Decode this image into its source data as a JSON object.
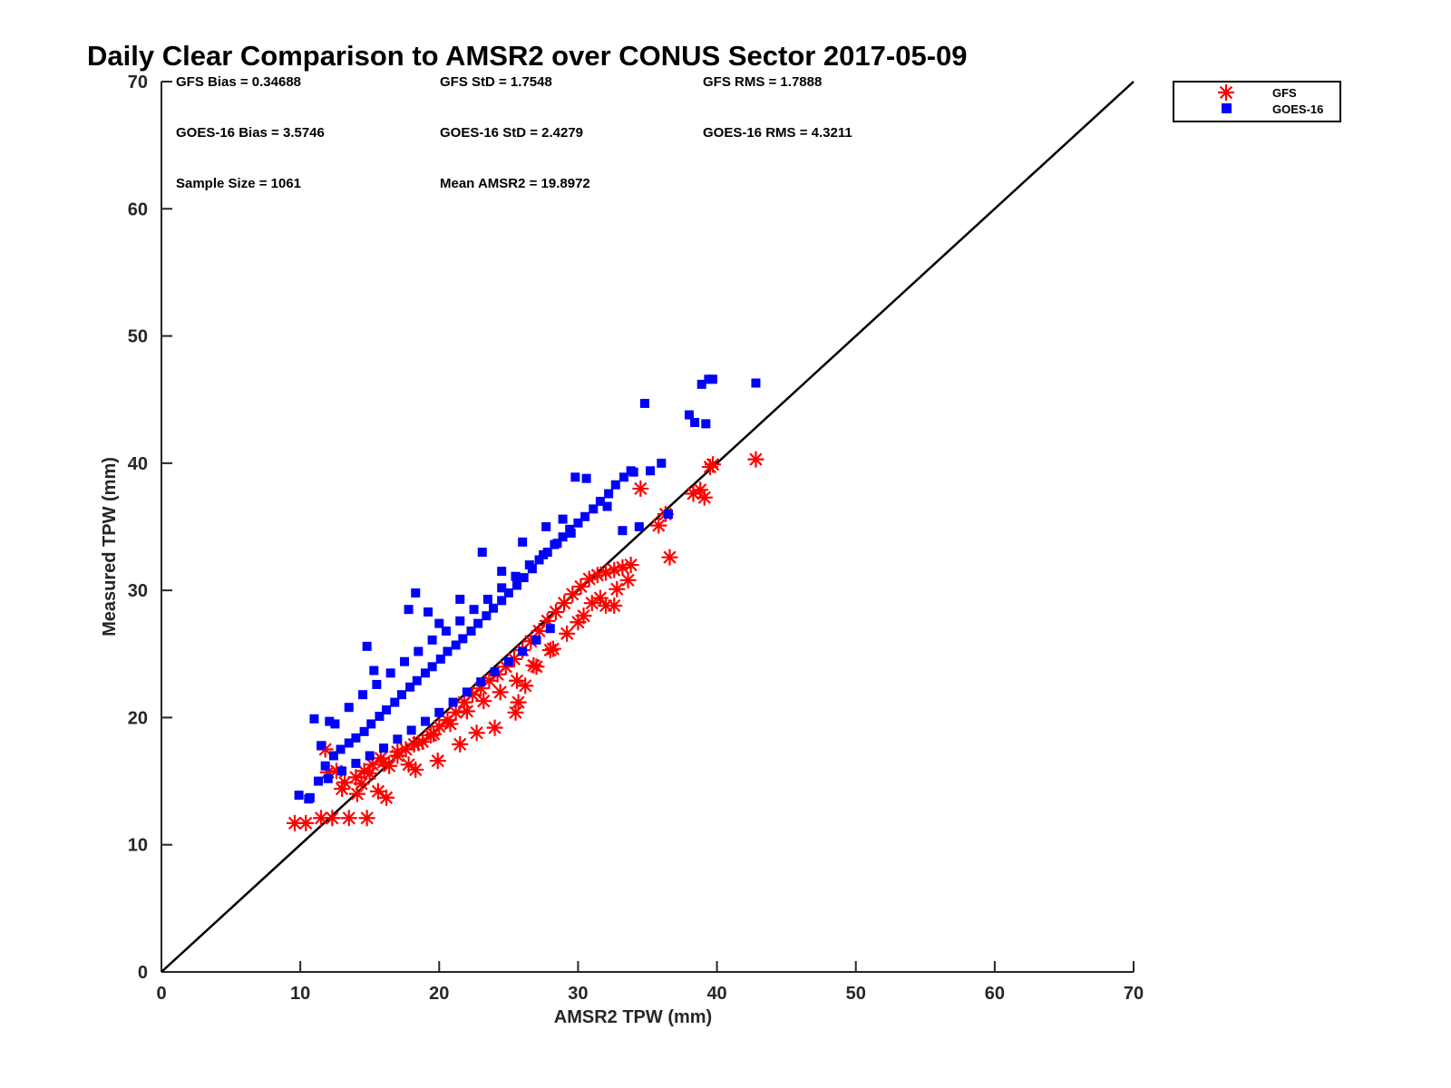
{
  "chart_data": {
    "type": "scatter",
    "title": "Daily Clear Comparison to AMSR2 over CONUS Sector 2017-05-09",
    "xlabel": "AMSR2 TPW (mm)",
    "ylabel": "Measured TPW (mm)",
    "xlim": [
      0,
      70
    ],
    "ylim": [
      0,
      70
    ],
    "xticks": [
      "0",
      "10",
      "20",
      "30",
      "40",
      "50",
      "60",
      "70"
    ],
    "yticks": [
      "0",
      "10",
      "20",
      "30",
      "40",
      "50",
      "60",
      "70"
    ],
    "grid": false,
    "legend_position": "top-right, outside plot",
    "reference_line": {
      "type": "one-to-one",
      "from": [
        0,
        0
      ],
      "to": [
        70,
        70
      ],
      "color": "#000000"
    },
    "annotations": [
      [
        "GFS Bias = 0.34688",
        "GFS StD = 1.7548",
        "GFS RMS = 1.7888"
      ],
      [
        "GOES-16 Bias = 3.5746",
        "GOES-16 StD = 2.4279",
        "GOES-16 RMS = 4.3211"
      ],
      [
        "Sample Size = 1061",
        "Mean AMSR2 = 19.8972",
        ""
      ]
    ],
    "series": [
      {
        "name": "GFS",
        "marker": "asterisk",
        "color": "#ff0000",
        "x": [
          9.6,
          10.4,
          11.5,
          12.3,
          13.5,
          14.8,
          16.2,
          11.8,
          12.6,
          13.2,
          14.0,
          14.6,
          15.2,
          15.8,
          16.4,
          17.0,
          17.6,
          18.2,
          18.8,
          19.4,
          20.0,
          20.6,
          21.2,
          21.8,
          22.4,
          23.0,
          23.6,
          24.2,
          24.8,
          25.4,
          26.0,
          26.6,
          27.2,
          27.8,
          28.4,
          29.0,
          29.6,
          30.2,
          30.8,
          31.4,
          32.0,
          32.6,
          33.2,
          33.8,
          13.0,
          14.4,
          15.0,
          16.0,
          17.0,
          18.5,
          19.6,
          20.8,
          22.0,
          23.2,
          24.4,
          25.6,
          26.8,
          28.0,
          29.2,
          30.4,
          31.6,
          32.8,
          12.0,
          14.1,
          17.8,
          21.5,
          24.0,
          25.5,
          25.7,
          28.2,
          32.0,
          32.6,
          34.5,
          35.8,
          36.3,
          36.6,
          38.3,
          38.8,
          39.1,
          39.5,
          39.7,
          42.8,
          15.6,
          18.3,
          19.9,
          22.7,
          26.2,
          27.0,
          30.0,
          31.0,
          33.6
        ],
        "y": [
          11.7,
          11.7,
          12.1,
          12.1,
          12.1,
          12.1,
          13.7,
          17.5,
          15.8,
          14.9,
          15.3,
          15.8,
          16.3,
          16.8,
          16.2,
          17.0,
          17.5,
          17.9,
          18.1,
          18.6,
          19.3,
          19.8,
          20.4,
          21.2,
          21.8,
          22.3,
          22.9,
          23.4,
          24.0,
          24.6,
          25.3,
          26.0,
          26.8,
          27.6,
          28.3,
          29.0,
          29.7,
          30.3,
          30.9,
          31.2,
          31.4,
          31.6,
          31.8,
          32.0,
          14.4,
          14.8,
          15.6,
          16.5,
          17.3,
          18.0,
          18.7,
          19.5,
          20.5,
          21.3,
          22.0,
          22.9,
          24.1,
          25.3,
          26.6,
          28.0,
          29.4,
          30.1,
          15.7,
          14.0,
          16.3,
          17.9,
          19.2,
          20.4,
          21.2,
          25.4,
          28.8,
          28.8,
          38.0,
          35.1,
          36.0,
          32.6,
          37.6,
          37.9,
          37.3,
          39.7,
          39.9,
          40.3,
          14.2,
          15.9,
          16.6,
          18.8,
          22.5,
          24.0,
          27.5,
          29.0,
          30.8
        ]
      },
      {
        "name": "GOES-16",
        "marker": "square",
        "color": "#0000ff",
        "x": [
          9.9,
          10.7,
          11.3,
          11.8,
          12.4,
          12.9,
          13.5,
          14.0,
          14.6,
          15.1,
          15.7,
          16.2,
          16.8,
          17.3,
          17.9,
          18.4,
          19.0,
          19.5,
          20.1,
          20.6,
          21.2,
          21.7,
          22.3,
          22.8,
          23.4,
          23.9,
          24.5,
          25.0,
          25.6,
          26.1,
          26.7,
          27.2,
          27.8,
          28.3,
          28.9,
          29.4,
          30.0,
          30.5,
          31.1,
          31.6,
          32.2,
          32.7,
          33.3,
          33.8,
          34.4,
          11.5,
          12.5,
          13.5,
          14.5,
          15.5,
          16.5,
          17.5,
          18.5,
          19.5,
          20.5,
          21.5,
          22.5,
          23.5,
          24.5,
          25.5,
          26.5,
          27.5,
          28.5,
          29.5,
          12.0,
          13.0,
          14.0,
          15.0,
          16.0,
          17.0,
          18.0,
          19.0,
          20.0,
          21.0,
          22.0,
          23.0,
          24.0,
          25.0,
          26.0,
          27.0,
          28.0,
          17.8,
          18.3,
          19.2,
          20.0,
          21.5,
          23.1,
          24.5,
          26.0,
          27.7,
          28.9,
          29.8,
          30.6,
          32.1,
          33.2,
          34.0,
          34.8,
          35.2,
          36.0,
          36.5,
          38.0,
          38.4,
          38.9,
          39.2,
          39.4,
          39.7,
          42.8,
          10.6,
          11.0,
          12.1,
          14.8,
          15.3
        ],
        "y": [
          13.9,
          13.7,
          15.0,
          16.2,
          17.0,
          17.5,
          18.0,
          18.4,
          18.9,
          19.5,
          20.1,
          20.6,
          21.2,
          21.8,
          22.4,
          22.9,
          23.5,
          24.0,
          24.6,
          25.2,
          25.7,
          26.2,
          26.8,
          27.4,
          28.0,
          28.6,
          29.2,
          29.8,
          30.4,
          31.0,
          31.7,
          32.4,
          33.0,
          33.6,
          34.2,
          34.8,
          35.3,
          35.8,
          36.4,
          37.0,
          37.6,
          38.3,
          38.9,
          39.4,
          35.0,
          17.8,
          19.5,
          20.8,
          21.8,
          22.6,
          23.5,
          24.4,
          25.2,
          26.1,
          26.8,
          27.6,
          28.5,
          29.3,
          30.2,
          31.1,
          32.0,
          32.8,
          33.7,
          34.5,
          15.2,
          15.8,
          16.4,
          17.0,
          17.6,
          18.3,
          19.0,
          19.7,
          20.4,
          21.2,
          22.0,
          22.8,
          23.6,
          24.4,
          25.2,
          26.1,
          27.0,
          28.5,
          29.8,
          28.3,
          27.4,
          29.3,
          33.0,
          31.5,
          33.8,
          35.0,
          35.6,
          38.9,
          38.8,
          36.6,
          34.7,
          39.3,
          44.7,
          39.4,
          40.0,
          36.0,
          43.8,
          43.2,
          46.2,
          43.1,
          46.6,
          46.6,
          46.3,
          13.6,
          19.9,
          19.7,
          25.6,
          23.7
        ]
      }
    ]
  }
}
